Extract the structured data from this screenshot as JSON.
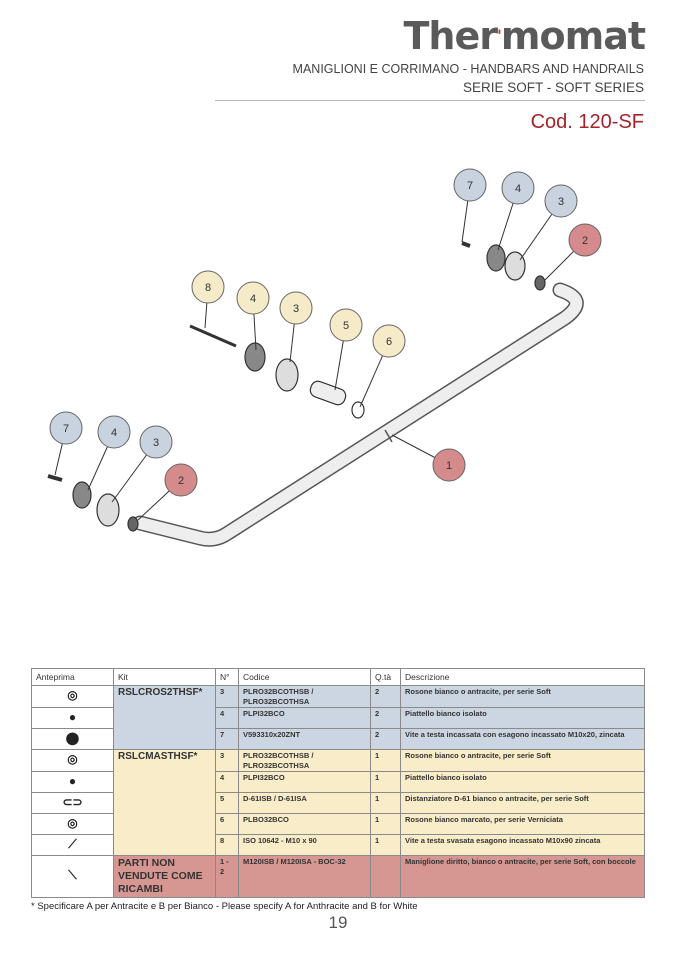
{
  "header": {
    "logo": "Thermomat",
    "subtitle_1": "MANIGLIONI E CORRIMANO - HANDBARS AND HANDRAILS",
    "subtitle_2": "SERIE SOFT - SOFT SERIES",
    "code": "Cod. 120-SF"
  },
  "diagram": {
    "callouts": [
      {
        "label": "7",
        "group": "kit1"
      },
      {
        "label": "4",
        "group": "kit1"
      },
      {
        "label": "3",
        "group": "kit1"
      },
      {
        "label": "2",
        "group": "not-sold"
      },
      {
        "label": "8",
        "group": "kit2"
      },
      {
        "label": "4",
        "group": "kit2"
      },
      {
        "label": "3",
        "group": "kit2"
      },
      {
        "label": "5",
        "group": "kit2"
      },
      {
        "label": "6",
        "group": "kit2"
      },
      {
        "label": "7",
        "group": "kit1"
      },
      {
        "label": "4",
        "group": "kit1"
      },
      {
        "label": "3",
        "group": "kit1"
      },
      {
        "label": "2",
        "group": "not-sold"
      },
      {
        "label": "1",
        "group": "not-sold"
      }
    ],
    "colors": {
      "kit1": "#c9d3e0",
      "kit2": "#f6ebc8",
      "not-sold": "#d58b8b"
    }
  },
  "table": {
    "headers": [
      "Anteprima",
      "Kit",
      "N°",
      "Codice",
      "Q.tà",
      "Descrizione"
    ],
    "kits": [
      {
        "name": "RSLCROS2THSF*",
        "rows": [
          {
            "n": "3",
            "code": "PLRO32BCOTHSB / PLRO32BCOTHSA",
            "qty": "2",
            "desc": "Rosone bianco o antracite, per serie Soft",
            "icon": "rosette-icon"
          },
          {
            "n": "4",
            "code": "PLPI32BCO",
            "qty": "2",
            "desc": "Piattello bianco isolato",
            "icon": "plate-icon"
          },
          {
            "n": "7",
            "code": "V593310x20ZNT",
            "qty": "2",
            "desc": "Vite a testa incassata con esagono incassato M10x20, zincata",
            "icon": "screw-icon"
          }
        ]
      },
      {
        "name": "RSLCMASTHSF*",
        "rows": [
          {
            "n": "3",
            "code": "PLRO32BCOTHSB / PLRO32BCOTHSA",
            "qty": "1",
            "desc": "Rosone bianco o antracite, per serie Soft",
            "icon": "rosette-icon"
          },
          {
            "n": "4",
            "code": "PLPI32BCO",
            "qty": "1",
            "desc": "Piattello bianco isolato",
            "icon": "plate-icon"
          },
          {
            "n": "5",
            "code": "D-61ISB / D-61ISA",
            "qty": "1",
            "desc": "Distanziatore D-61 bianco o antracite, per serie Soft",
            "icon": "spacer-icon"
          },
          {
            "n": "6",
            "code": "PLBO32BCO",
            "qty": "1",
            "desc": "Rosone bianco marcato, per serie Verniciata",
            "icon": "ring-icon"
          },
          {
            "n": "8",
            "code": "ISO 10642 - M10 x 90",
            "qty": "1",
            "desc": "Vite a testa svasata esagono incassato M10x90 zincata",
            "icon": "long-screw-icon"
          }
        ]
      },
      {
        "name": "PARTI NON VENDUTE COME RICAMBI",
        "rows": [
          {
            "n": "1 - 2",
            "code": "M120ISB / M120ISA - BOC-32",
            "qty": "",
            "desc": "Maniglione diritto, bianco o antracite, per serie Soft, con boccole",
            "icon": "handrail-icon"
          }
        ]
      }
    ]
  },
  "footnote": "* Specificare A per Antracite e B per Bianco - Please specify A for Anthracite and B for White",
  "page_number": "19"
}
